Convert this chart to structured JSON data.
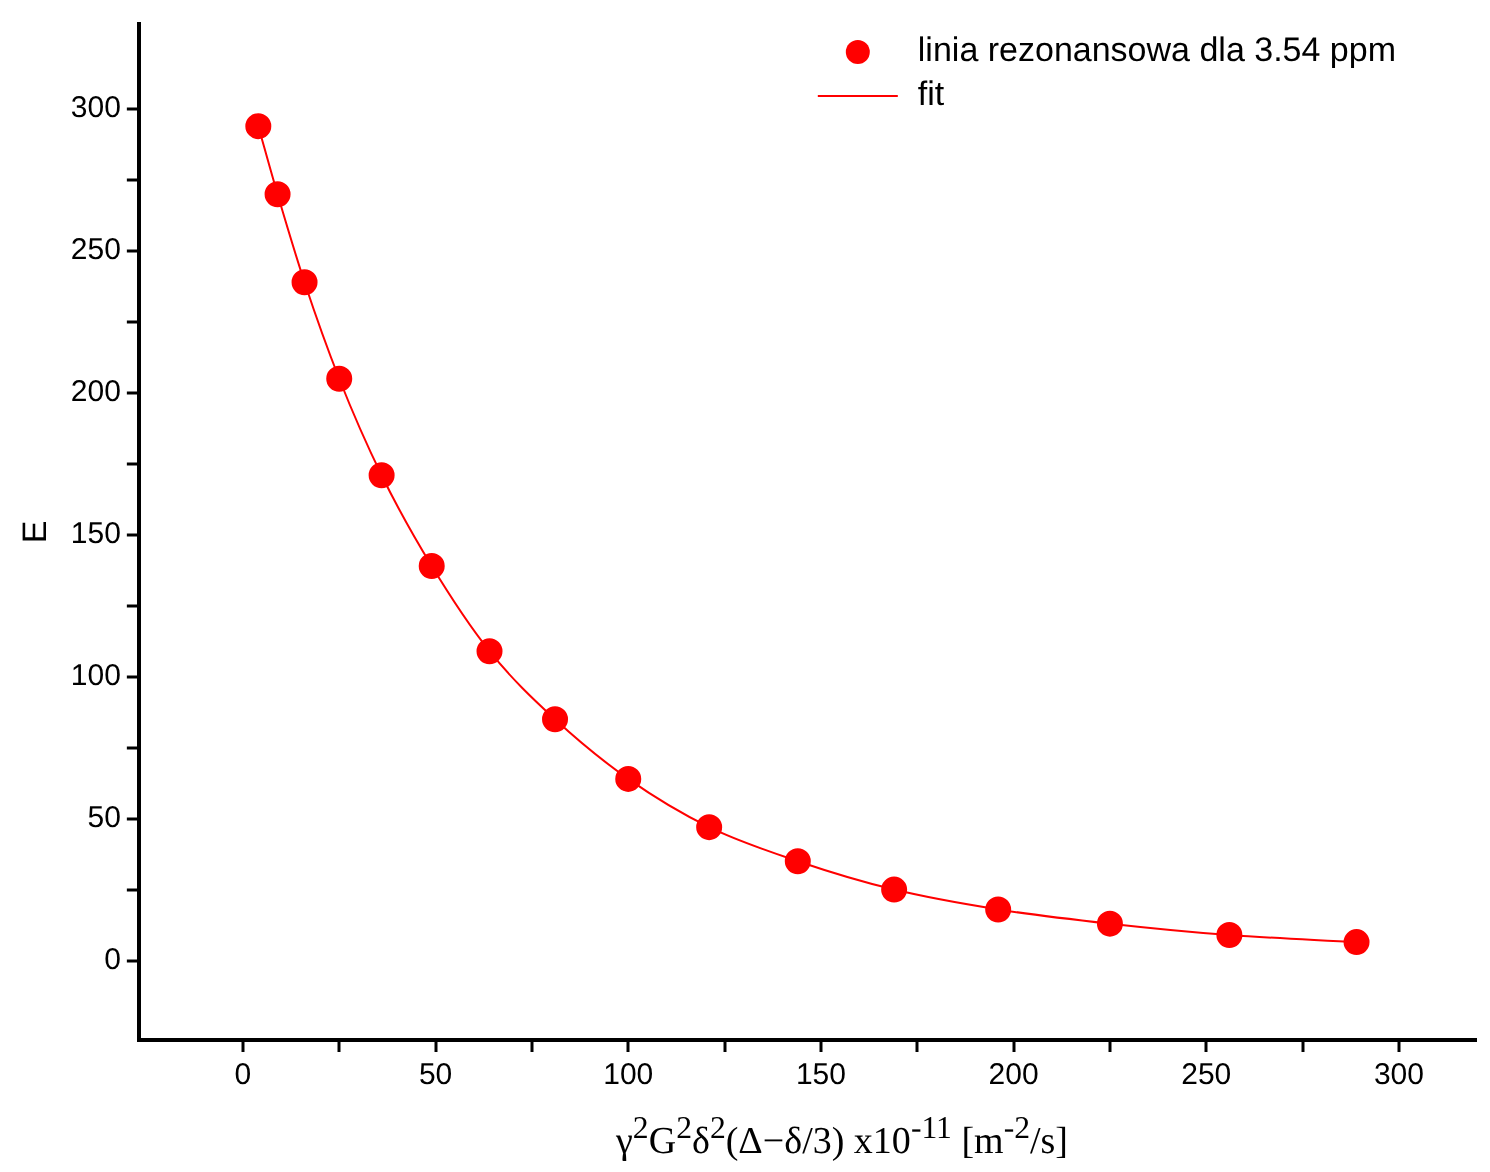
{
  "chart_data": {
    "type": "scatter",
    "xlabel": "γ$^{2}$G$^{2}$δ$^{2}$(Δ−δ/3) x10$^{-11}$ [m$^{-2}$/s]",
    "ylabel": "E",
    "xlim": [
      -27,
      320
    ],
    "ylim": [
      -28,
      330
    ],
    "xticks": [
      0,
      {
        "value": 25,
        "label": null
      },
      50,
      {
        "value": 75,
        "label": null
      },
      100,
      {
        "value": 125,
        "label": null
      },
      150,
      {
        "value": 175,
        "label": null
      },
      200,
      {
        "value": 225,
        "label": null
      },
      250,
      {
        "value": 275,
        "label": null
      },
      300
    ],
    "yticks": [
      0,
      {
        "value": 25,
        "label": null
      },
      50,
      {
        "value": 75,
        "label": null
      },
      100,
      {
        "value": 125,
        "label": null
      },
      150,
      {
        "value": 175,
        "label": null
      },
      200,
      {
        "value": 225,
        "label": null
      },
      250,
      {
        "value": 275,
        "label": null
      },
      300
    ],
    "grid": false,
    "legend": "top right",
    "series": [
      {
        "name": "linia rezonansowa dla 3.54 ppm",
        "type": "scatter",
        "marker": "circle",
        "color": "#ff0000",
        "x": [
          4,
          9,
          16,
          25,
          36,
          49,
          64,
          81,
          100,
          121,
          144,
          169,
          196,
          225,
          256,
          289
        ],
        "values": [
          294,
          270,
          239,
          205,
          171,
          139,
          109,
          85,
          64,
          47,
          35,
          25,
          18,
          13,
          9,
          6.5
        ]
      },
      {
        "name": "fit",
        "type": "line",
        "marker": "none",
        "line_style": "solid",
        "color": "#ff0000",
        "x": [
          4,
          9,
          16,
          25,
          36,
          49,
          64,
          81,
          100,
          121,
          144,
          169,
          196,
          225,
          256,
          289
        ],
        "values": [
          294,
          270,
          239,
          205,
          171,
          139,
          109,
          85,
          64,
          47,
          35,
          25,
          18,
          13,
          9,
          6.5
        ]
      }
    ]
  }
}
